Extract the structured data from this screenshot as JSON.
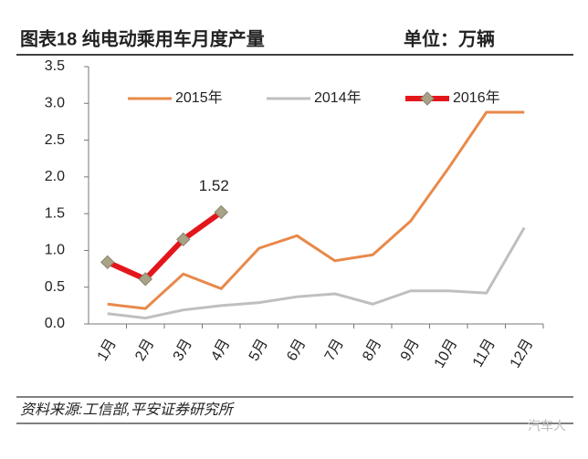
{
  "chart_data": {
    "type": "line",
    "title": "图表18   纯电动乘用车月度产量",
    "unit_label": "单位：万辆",
    "source": "资料来源:工信部,平安证券研究所",
    "watermark": "汽车人",
    "categories": [
      "1月",
      "2月",
      "3月",
      "4月",
      "5月",
      "6月",
      "7月",
      "8月",
      "9月",
      "10月",
      "11月",
      "12月"
    ],
    "series": [
      {
        "name": "2015年",
        "color": "#e8894a",
        "values": [
          0.27,
          0.21,
          0.68,
          0.48,
          1.03,
          1.2,
          0.86,
          0.94,
          1.4,
          2.12,
          2.88,
          2.88
        ]
      },
      {
        "name": "2014年",
        "color": "#bfbfbf",
        "values": [
          0.14,
          0.08,
          0.19,
          0.25,
          0.29,
          0.37,
          0.41,
          0.27,
          0.45,
          0.45,
          0.42,
          1.31
        ]
      },
      {
        "name": "2016年",
        "color": "#e3161c",
        "marker_color": "#a8a286",
        "values": [
          0.84,
          0.61,
          1.15,
          1.52,
          null,
          null,
          null,
          null,
          null,
          null,
          null,
          null
        ]
      }
    ],
    "labeled_point": "1.52",
    "ylim": [
      0,
      3.5
    ],
    "yticks": [
      {
        "value": 0,
        "label": "0.0"
      },
      0.5,
      {
        "value": 1,
        "label": "1.0"
      },
      1.5,
      {
        "value": 2,
        "label": "2.0"
      },
      2.5,
      {
        "value": 3,
        "label": "3.0"
      },
      3.5
    ],
    "grid": false,
    "legend": "top"
  }
}
